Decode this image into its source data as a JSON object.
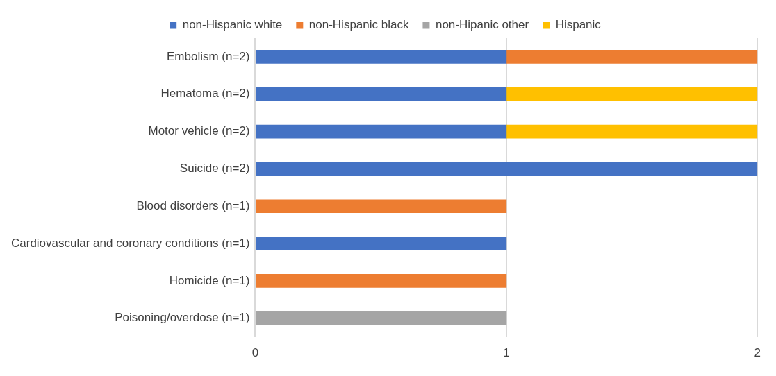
{
  "chart_data": {
    "type": "bar",
    "orientation": "horizontal",
    "stacked": true,
    "categories": [
      "Embolism (n=2)",
      "Hematoma (n=2)",
      "Motor vehicle (n=2)",
      "Suicide (n=2)",
      "Blood disorders (n=1)",
      "Cardiovascular and coronary conditions (n=1)",
      "Homicide (n=1)",
      "Poisoning/overdose (n=1)"
    ],
    "series": [
      {
        "name": "non-Hispanic white",
        "color": "#4472c4",
        "values": [
          1,
          1,
          1,
          2,
          null,
          1,
          null,
          null
        ]
      },
      {
        "name": "non-Hispanic black",
        "color": "#ed7d31",
        "values": [
          1,
          null,
          null,
          null,
          1,
          null,
          1,
          null
        ]
      },
      {
        "name": "non-Hipanic other",
        "color": "#a5a5a5",
        "values": [
          null,
          null,
          null,
          null,
          null,
          null,
          null,
          1
        ]
      },
      {
        "name": "Hispanic",
        "color": "#ffc000",
        "values": [
          null,
          1,
          1,
          null,
          null,
          null,
          null,
          null
        ]
      }
    ],
    "xlim": [
      0,
      2
    ],
    "xticks": [
      0,
      1,
      2
    ],
    "grid": "x",
    "legend": "top"
  }
}
